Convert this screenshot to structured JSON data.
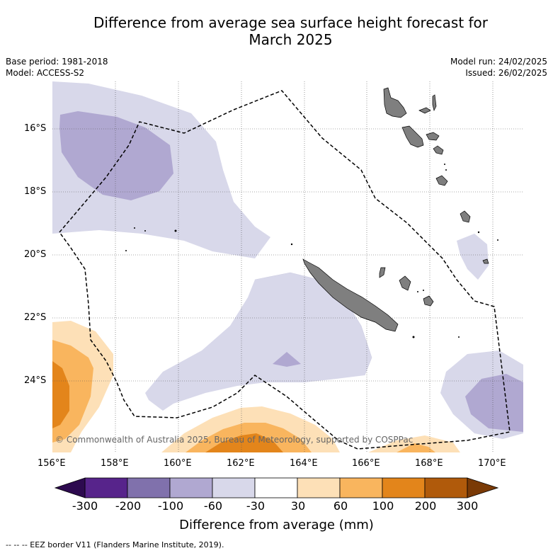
{
  "title_line1": "Difference from average sea surface height forecast for",
  "title_line2": "March 2025",
  "meta_left": {
    "base_period": "Base period: 1981-2018",
    "model": "Model: ACCESS-S2"
  },
  "meta_right": {
    "model_run": "Model run: 24/02/2025",
    "issued": "Issued: 26/02/2025"
  },
  "latitude_labels": [
    "16°S",
    "18°S",
    "20°S",
    "22°S",
    "24°S"
  ],
  "longitude_labels": [
    "156°E",
    "158°E",
    "160°E",
    "162°E",
    "164°E",
    "166°E",
    "168°E",
    "170°E"
  ],
  "copyright": "© Commonwealth of Australia 2025, Bureau of Meteorology, supported by COSPPac",
  "colorbar": {
    "ticks": [
      "-300",
      "-200",
      "-100",
      "-60",
      "-30",
      "30",
      "60",
      "100",
      "200",
      "300"
    ],
    "colors": [
      "#57248b",
      "#8071ac",
      "#b0a8d1",
      "#d8d8ea",
      "#ffffff",
      "#fde0b7",
      "#f9b55e",
      "#e3851b",
      "#b05a0b"
    ],
    "under_color": "#2d0a4f",
    "over_color": "#7a3a06",
    "label": "Difference from average (mm)"
  },
  "footnote": "--  --  -- EEZ border V11 (Flanders Marine Institute, 2019)."
}
